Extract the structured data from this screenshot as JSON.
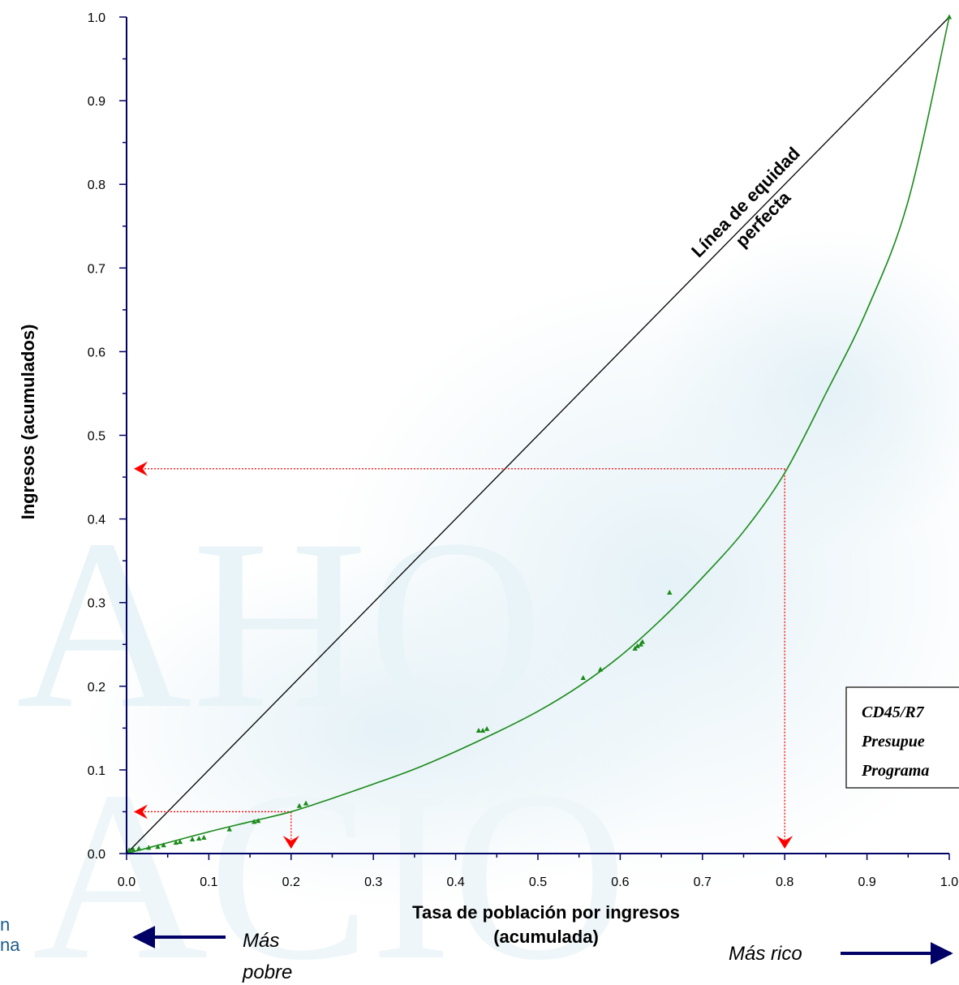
{
  "chart_data": {
    "type": "line",
    "title": "",
    "xlabel_lines": [
      "Tasa de población por ingresos",
      "(acumulada)"
    ],
    "ylabel": "Ingresos (acumulados)",
    "xlim": [
      0,
      1
    ],
    "ylim": [
      0,
      1
    ],
    "x_ticks": [
      "0.0",
      "0.1",
      "0.2",
      "0.3",
      "0.4",
      "0.5",
      "0.6",
      "0.7",
      "0.8",
      "0.9",
      "1.0"
    ],
    "y_ticks": [
      "0.0",
      "0.1",
      "0.2",
      "0.3",
      "0.4",
      "0.5",
      "0.6",
      "0.7",
      "0.8",
      "0.9",
      "1.0"
    ],
    "grid": false,
    "equity_line_label": [
      "Línea de equidad",
      "perfecta"
    ],
    "series": [
      {
        "kind": "curve",
        "color": "#1a8a1a",
        "x": [
          0,
          0.05,
          0.1,
          0.15,
          0.2,
          0.25,
          0.3,
          0.35,
          0.4,
          0.45,
          0.5,
          0.55,
          0.6,
          0.65,
          0.7,
          0.75,
          0.8,
          0.85,
          0.9,
          0.95,
          1.0
        ],
        "y": [
          0,
          0.013,
          0.026,
          0.038,
          0.05,
          0.066,
          0.083,
          0.101,
          0.122,
          0.145,
          0.17,
          0.2,
          0.236,
          0.28,
          0.33,
          0.385,
          0.455,
          0.55,
          0.65,
          0.78,
          1.0
        ]
      },
      {
        "kind": "points",
        "color": "#1a8a1a",
        "x": [
          0.003,
          0.008,
          0.015,
          0.027,
          0.038,
          0.045,
          0.06,
          0.065,
          0.08,
          0.088,
          0.094,
          0.125,
          0.155,
          0.16,
          0.21,
          0.218,
          0.428,
          0.433,
          0.438,
          0.555,
          0.576,
          0.618,
          0.621,
          0.625,
          0.627,
          0.66,
          1.0
        ],
        "y": [
          0.004,
          0.005,
          0.006,
          0.007,
          0.008,
          0.01,
          0.013,
          0.014,
          0.017,
          0.018,
          0.019,
          0.029,
          0.038,
          0.039,
          0.057,
          0.06,
          0.147,
          0.147,
          0.149,
          0.21,
          0.22,
          0.245,
          0.248,
          0.25,
          0.253,
          0.312,
          1.0
        ]
      }
    ],
    "annotations": {
      "line_color": "#ff0000",
      "dotted_lines": [
        {
          "x": 0.8,
          "y": 0.46
        },
        {
          "x": 0.2,
          "y": 0.05
        }
      ],
      "direction_left": [
        "Más",
        "pobre"
      ],
      "direction_right": "Más rico",
      "box_lines": [
        "CD45/R7",
        "Presupue",
        "Programa"
      ],
      "side_text": [
        "n",
        "na"
      ]
    }
  }
}
